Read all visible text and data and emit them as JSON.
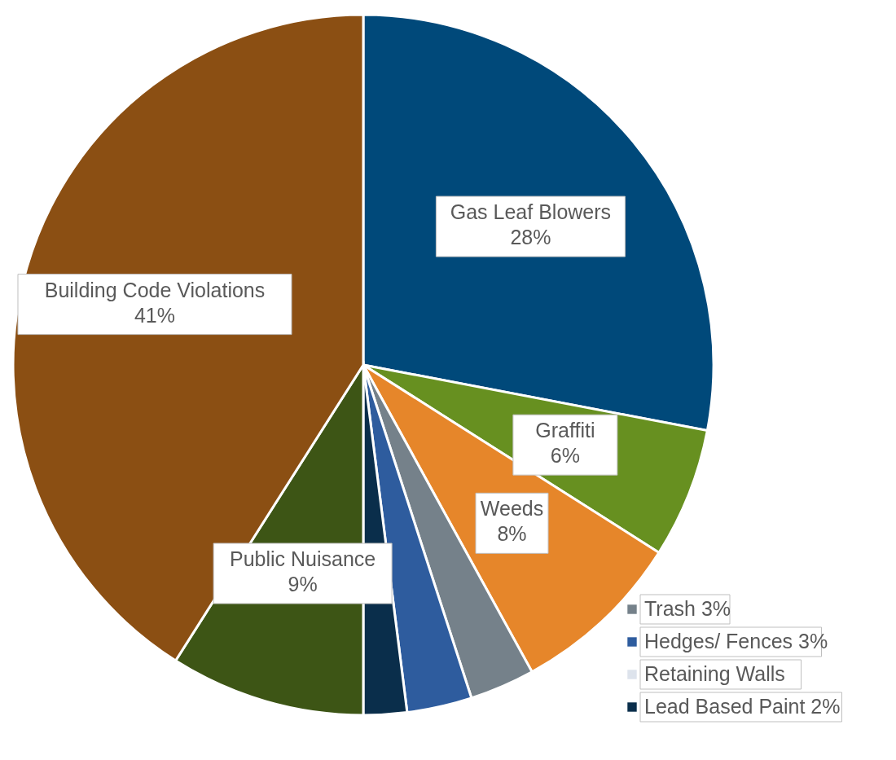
{
  "chart_data": {
    "type": "pie",
    "categories": [
      "Gas Leaf Blowers",
      "Graffiti",
      "Weeds",
      "Trash",
      "Hedges/ Fences",
      "Retaining Walls",
      "Lead Based Paint",
      "Public Nuisance",
      "Building Code Violations"
    ],
    "values": [
      28,
      6,
      8,
      3,
      3,
      0,
      2,
      9,
      41
    ],
    "colors": [
      "#00497a",
      "#679020",
      "#e6862a",
      "#75818a",
      "#2e5c9e",
      "#dde3ec",
      "#0a2e4b",
      "#3d5515",
      "#8b4f13"
    ],
    "legend": "bottom right",
    "value_labels": [
      "28%",
      "6%",
      "8%",
      "3%",
      "3%",
      null,
      "2%",
      "9%",
      "41%"
    ]
  }
}
